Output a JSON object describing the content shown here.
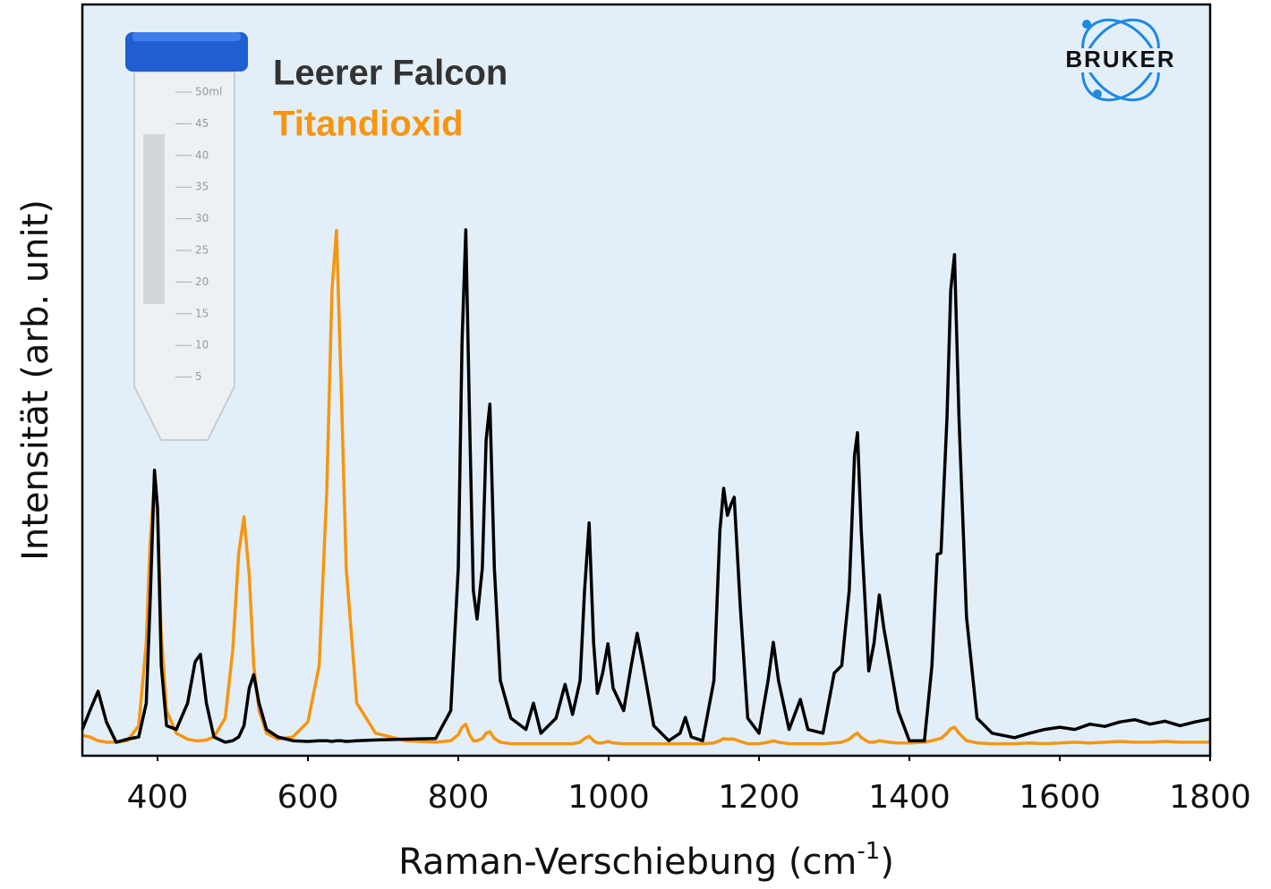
{
  "chart_data": {
    "type": "line",
    "x_label": {
      "text": "Raman-Verschiebung (cm",
      "superscript": "-1",
      "suffix": ")"
    },
    "y_label": "Intensität (arb. unit)",
    "logo": "BRUKER",
    "tube_graduations": [
      "50ml",
      "45",
      "40",
      "35",
      "30",
      "25",
      "20",
      "15",
      "10",
      "5"
    ],
    "xlim": [
      300,
      1800
    ],
    "xticks": [
      400,
      600,
      800,
      1000,
      1200,
      1400,
      1600,
      1800
    ],
    "ylim": [
      0,
      100
    ],
    "background": "#e3eff8",
    "x": [
      300,
      310,
      321,
      332,
      345,
      360,
      375,
      385,
      390,
      396,
      400,
      405,
      412,
      425,
      440,
      450,
      457,
      465,
      475,
      490,
      500,
      508,
      515,
      522,
      528,
      535,
      545,
      560,
      580,
      600,
      615,
      625,
      632,
      638,
      644,
      651,
      665,
      690,
      730,
      770,
      790,
      800,
      805,
      810,
      815,
      820,
      825,
      832,
      837,
      842,
      848,
      856,
      870,
      890,
      900,
      910,
      930,
      942,
      952,
      962,
      968,
      974,
      980,
      985,
      992,
      999,
      1006,
      1020,
      1030,
      1038,
      1046,
      1060,
      1080,
      1095,
      1102,
      1110,
      1125,
      1140,
      1148,
      1153,
      1158,
      1163,
      1167,
      1175,
      1185,
      1200,
      1212,
      1219,
      1226,
      1240,
      1255,
      1265,
      1285,
      1300,
      1310,
      1320,
      1327,
      1331,
      1336,
      1346,
      1353,
      1360,
      1366,
      1373,
      1385,
      1400,
      1420,
      1430,
      1437,
      1442,
      1450,
      1455,
      1460,
      1466,
      1476,
      1490,
      1510,
      1540,
      1560,
      1580,
      1600,
      1620,
      1640,
      1660,
      1680,
      1700,
      1720,
      1740,
      1760,
      1780,
      1800
    ],
    "series": [
      {
        "name": "Leerer Falcon",
        "color": "#000000",
        "legend_color": "#333333",
        "values": [
          3.5,
          6,
          8.6,
          4.5,
          1.8,
          2.2,
          2.5,
          7,
          20,
          38,
          33,
          12,
          4,
          3.5,
          7,
          12.5,
          13.5,
          7,
          2.5,
          1.8,
          2,
          2.5,
          4,
          9,
          10.8,
          7,
          3.5,
          2.5,
          2,
          1.9,
          2,
          2,
          1.9,
          2,
          2,
          1.9,
          2,
          2.1,
          2.2,
          2.3,
          6,
          25,
          55,
          70,
          45,
          22,
          18.2,
          25,
          42,
          46.8,
          25,
          10,
          5,
          3.5,
          7,
          3,
          5,
          9.5,
          5.5,
          10,
          22,
          31,
          15,
          8.3,
          11,
          14.9,
          9,
          6,
          12,
          16.3,
          12,
          4,
          2,
          3,
          5.1,
          2.5,
          2,
          10,
          30,
          35.6,
          32,
          33.5,
          34.4,
          20,
          5,
          3,
          10,
          15.1,
          10,
          3.5,
          7.5,
          3.5,
          3,
          11,
          12,
          22,
          40,
          43,
          30,
          11.3,
          15,
          21.4,
          17,
          13,
          6,
          2,
          2,
          12,
          26.8,
          27,
          45,
          62,
          66.7,
          45,
          18.5,
          5,
          3,
          2.4,
          3,
          3.5,
          3.8,
          3.5,
          4.2,
          3.9,
          4.5,
          4.8,
          4.2,
          4.6,
          4,
          4.5,
          4.9
        ]
      },
      {
        "name": "Titandioxid",
        "color": "#f7950f",
        "legend_color": "#f7950f",
        "values": [
          2.7,
          2.5,
          2,
          1.8,
          1.8,
          2,
          4,
          15,
          28,
          36.9,
          32,
          16,
          6,
          3,
          2.2,
          2,
          2,
          2.1,
          2.5,
          5,
          14,
          27,
          31.8,
          24,
          12,
          6,
          3,
          2.2,
          2.5,
          4.5,
          12,
          35,
          62,
          69.9,
          50,
          25,
          7,
          3,
          2,
          1.8,
          2,
          2.8,
          3.8,
          4.2,
          2.8,
          2,
          2,
          2.3,
          3,
          3.2,
          2.3,
          1.8,
          1.6,
          1.6,
          1.6,
          1.6,
          1.6,
          1.6,
          1.6,
          1.8,
          2.3,
          2.6,
          2,
          1.7,
          1.7,
          1.9,
          1.7,
          1.6,
          1.6,
          1.6,
          1.6,
          1.6,
          1.6,
          1.6,
          1.6,
          1.6,
          1.6,
          1.7,
          2,
          2.3,
          2.2,
          2.2,
          2.2,
          1.9,
          1.6,
          1.6,
          1.8,
          2,
          1.8,
          1.6,
          1.6,
          1.6,
          1.6,
          1.7,
          1.8,
          2.2,
          2.8,
          3,
          2.4,
          1.8,
          1.8,
          2,
          1.9,
          1.8,
          1.7,
          1.7,
          1.8,
          2,
          2.2,
          2.3,
          3,
          3.6,
          3.8,
          3,
          2,
          1.7,
          1.6,
          1.6,
          1.7,
          1.6,
          1.7,
          1.8,
          1.7,
          1.8,
          1.9,
          1.8,
          1.8,
          1.9,
          1.8,
          1.8,
          1.8
        ]
      }
    ]
  }
}
